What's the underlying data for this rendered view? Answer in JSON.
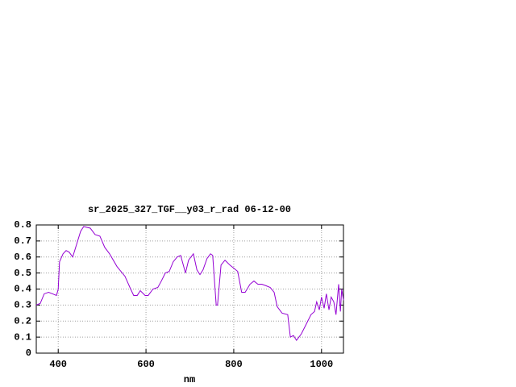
{
  "chart_data": {
    "type": "line",
    "title": "sr_2025_327_TGF__y03_r_rad 06-12-00",
    "x_label": "nm",
    "xlim": [
      350,
      1050
    ],
    "xticks": [
      400,
      600,
      800,
      1000
    ],
    "ylim": [
      0,
      0.8
    ],
    "yticks": [
      0,
      0.1,
      0.2,
      0.3,
      0.4,
      0.5,
      0.6,
      0.7,
      0.8
    ],
    "grid": true,
    "x": [
      350,
      359,
      368,
      378,
      387,
      396,
      400,
      403,
      411,
      418,
      425,
      433,
      442,
      451,
      458,
      473,
      484,
      495,
      506,
      517,
      534,
      552,
      565,
      572,
      580,
      587,
      598,
      605,
      616,
      627,
      635,
      644,
      653,
      662,
      671,
      679,
      690,
      697,
      708,
      716,
      723,
      730,
      739,
      747,
      752,
      760,
      763,
      771,
      780,
      791,
      800,
      809,
      818,
      826,
      837,
      846,
      855,
      864,
      874,
      883,
      892,
      899,
      910,
      923,
      929,
      936,
      943,
      954,
      965,
      976,
      984,
      989,
      995,
      1000,
      1006,
      1011,
      1017,
      1022,
      1028,
      1033,
      1039,
      1043,
      1046,
      1050
    ],
    "series": [
      {
        "color": "#9400d3",
        "values": [
          0.3,
          0.31,
          0.37,
          0.38,
          0.37,
          0.36,
          0.4,
          0.57,
          0.62,
          0.64,
          0.63,
          0.6,
          0.68,
          0.76,
          0.79,
          0.78,
          0.74,
          0.73,
          0.66,
          0.62,
          0.54,
          0.48,
          0.4,
          0.36,
          0.36,
          0.39,
          0.36,
          0.36,
          0.4,
          0.41,
          0.45,
          0.5,
          0.51,
          0.57,
          0.6,
          0.61,
          0.5,
          0.58,
          0.62,
          0.52,
          0.49,
          0.52,
          0.59,
          0.62,
          0.61,
          0.3,
          0.3,
          0.55,
          0.58,
          0.55,
          0.53,
          0.51,
          0.38,
          0.38,
          0.43,
          0.45,
          0.43,
          0.43,
          0.42,
          0.41,
          0.38,
          0.29,
          0.25,
          0.24,
          0.1,
          0.11,
          0.08,
          0.12,
          0.18,
          0.24,
          0.26,
          0.32,
          0.27,
          0.35,
          0.28,
          0.37,
          0.27,
          0.35,
          0.32,
          0.24,
          0.43,
          0.26,
          0.4,
          0.33
        ]
      }
    ]
  }
}
